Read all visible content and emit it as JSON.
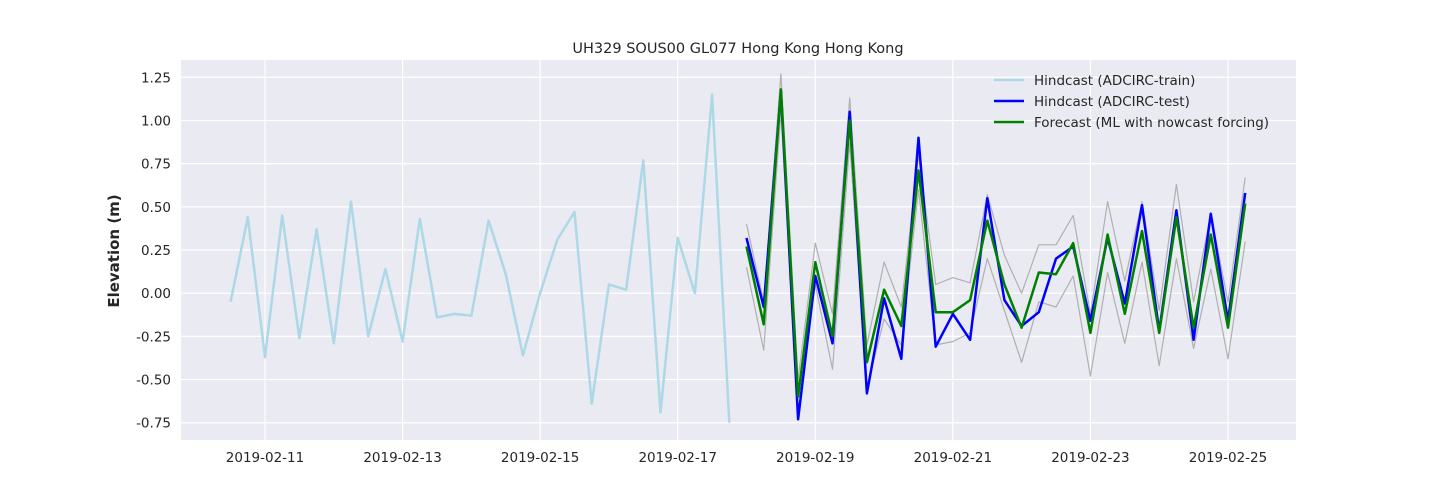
{
  "chart_data": {
    "type": "line",
    "title": "UH329 SOUS00 GL077 Hong Kong Hong Kong",
    "xlabel": "",
    "ylabel": "Elevation (m)",
    "x_axis": {
      "type": "date",
      "range": [
        "2019-02-10",
        "2019-02-26"
      ],
      "ticks": [
        "2019-02-11",
        "2019-02-13",
        "2019-02-15",
        "2019-02-17",
        "2019-02-19",
        "2019-02-21",
        "2019-02-23",
        "2019-02-25"
      ]
    },
    "y_axis": {
      "range": [
        -0.85,
        1.35
      ],
      "ticks": [
        "-0.75",
        "-0.50",
        "-0.25",
        "0.00",
        "0.25",
        "0.50",
        "0.75",
        "1.00",
        "1.25"
      ]
    },
    "grid": true,
    "background": "#eaeaf2",
    "legend_position": "top-right",
    "series": [
      {
        "name": "Hindcast (ADCIRC-train)",
        "color": "#add8e6",
        "x": [
          "2019-02-10 12:00",
          "2019-02-10 18:00",
          "2019-02-11 00:00",
          "2019-02-11 06:00",
          "2019-02-11 12:00",
          "2019-02-11 18:00",
          "2019-02-12 00:00",
          "2019-02-12 06:00",
          "2019-02-12 12:00",
          "2019-02-12 18:00",
          "2019-02-13 00:00",
          "2019-02-13 06:00",
          "2019-02-13 12:00",
          "2019-02-13 18:00",
          "2019-02-14 00:00",
          "2019-02-14 06:00",
          "2019-02-14 12:00",
          "2019-02-14 18:00",
          "2019-02-15 00:00",
          "2019-02-15 06:00",
          "2019-02-15 12:00",
          "2019-02-15 18:00",
          "2019-02-16 00:00",
          "2019-02-16 06:00",
          "2019-02-16 12:00",
          "2019-02-16 18:00",
          "2019-02-17 00:00",
          "2019-02-17 06:00",
          "2019-02-17 12:00",
          "2019-02-17 18:00"
        ],
        "values": [
          -0.05,
          0.44,
          -0.37,
          0.45,
          -0.26,
          0.37,
          -0.29,
          0.53,
          -0.25,
          0.14,
          -0.28,
          0.43,
          -0.14,
          -0.12,
          -0.13,
          0.42,
          0.11,
          -0.36,
          0.0,
          0.31,
          0.47,
          -0.64,
          0.05,
          0.02,
          0.77,
          -0.69,
          0.32,
          0.0,
          1.15,
          -0.75
        ]
      },
      {
        "name": "Hindcast (ADCIRC-test)",
        "color": "#0000ff",
        "x": [
          "2019-02-18 00:00",
          "2019-02-18 06:00",
          "2019-02-18 12:00",
          "2019-02-18 18:00",
          "2019-02-19 00:00",
          "2019-02-19 06:00",
          "2019-02-19 12:00",
          "2019-02-19 18:00",
          "2019-02-20 00:00",
          "2019-02-20 06:00",
          "2019-02-20 12:00",
          "2019-02-20 18:00",
          "2019-02-21 00:00",
          "2019-02-21 06:00",
          "2019-02-21 12:00",
          "2019-02-21 18:00",
          "2019-02-22 00:00",
          "2019-02-22 06:00",
          "2019-02-22 12:00",
          "2019-02-22 18:00",
          "2019-02-23 00:00",
          "2019-02-23 06:00",
          "2019-02-23 12:00",
          "2019-02-23 18:00",
          "2019-02-24 00:00",
          "2019-02-24 06:00",
          "2019-02-24 12:00",
          "2019-02-24 18:00",
          "2019-02-25 00:00",
          "2019-02-25 06:00"
        ],
        "values": [
          0.32,
          -0.08,
          1.17,
          -0.73,
          0.1,
          -0.29,
          1.05,
          -0.58,
          -0.03,
          -0.38,
          0.9,
          -0.31,
          -0.12,
          -0.27,
          0.55,
          -0.04,
          -0.19,
          -0.11,
          0.2,
          0.27,
          -0.16,
          0.32,
          -0.06,
          0.51,
          -0.22,
          0.48,
          -0.27,
          0.46,
          -0.16,
          0.58
        ]
      },
      {
        "name": "Forecast (ML with nowcast forcing)",
        "color": "#008000",
        "x": [
          "2019-02-18 00:00",
          "2019-02-18 06:00",
          "2019-02-18 12:00",
          "2019-02-18 18:00",
          "2019-02-19 00:00",
          "2019-02-19 06:00",
          "2019-02-19 12:00",
          "2019-02-19 18:00",
          "2019-02-20 00:00",
          "2019-02-20 06:00",
          "2019-02-20 12:00",
          "2019-02-20 18:00",
          "2019-02-21 00:00",
          "2019-02-21 06:00",
          "2019-02-21 12:00",
          "2019-02-21 18:00",
          "2019-02-22 00:00",
          "2019-02-22 06:00",
          "2019-02-22 12:00",
          "2019-02-22 18:00",
          "2019-02-23 00:00",
          "2019-02-23 06:00",
          "2019-02-23 12:00",
          "2019-02-23 18:00",
          "2019-02-24 00:00",
          "2019-02-24 06:00",
          "2019-02-24 12:00",
          "2019-02-24 18:00",
          "2019-02-25 00:00",
          "2019-02-25 06:00"
        ],
        "values": [
          0.27,
          -0.18,
          1.18,
          -0.6,
          0.18,
          -0.25,
          1.0,
          -0.4,
          0.02,
          -0.19,
          0.71,
          -0.11,
          -0.11,
          -0.04,
          0.42,
          0.05,
          -0.2,
          0.12,
          0.11,
          0.29,
          -0.23,
          0.34,
          -0.12,
          0.36,
          -0.23,
          0.44,
          -0.2,
          0.34,
          -0.2,
          0.52
        ]
      },
      {
        "color": "#b0b0b0",
        "x": [
          "2019-02-18 00:00",
          "2019-02-18 06:00",
          "2019-02-18 12:00",
          "2019-02-18 18:00",
          "2019-02-19 00:00",
          "2019-02-19 06:00",
          "2019-02-19 12:00",
          "2019-02-19 18:00",
          "2019-02-20 00:00",
          "2019-02-20 06:00",
          "2019-02-20 12:00",
          "2019-02-20 18:00",
          "2019-02-21 00:00",
          "2019-02-21 06:00",
          "2019-02-21 12:00",
          "2019-02-21 18:00",
          "2019-02-22 00:00",
          "2019-02-22 06:00",
          "2019-02-22 12:00",
          "2019-02-22 18:00",
          "2019-02-23 00:00",
          "2019-02-23 06:00",
          "2019-02-23 12:00",
          "2019-02-23 18:00",
          "2019-02-24 00:00",
          "2019-02-24 06:00",
          "2019-02-24 12:00",
          "2019-02-24 18:00",
          "2019-02-25 00:00",
          "2019-02-25 06:00"
        ],
        "values": [
          0.4,
          -0.05,
          1.27,
          -0.5,
          0.29,
          -0.12,
          1.13,
          -0.3,
          0.18,
          -0.08,
          0.8,
          0.05,
          0.09,
          0.06,
          0.57,
          0.22,
          0.0,
          0.28,
          0.28,
          0.45,
          -0.12,
          0.53,
          0.07,
          0.53,
          -0.1,
          0.63,
          -0.05,
          0.46,
          -0.05,
          0.67
        ]
      },
      {
        "color": "#b0b0b0",
        "x": [
          "2019-02-18 00:00",
          "2019-02-18 06:00",
          "2019-02-18 12:00",
          "2019-02-18 18:00",
          "2019-02-19 00:00",
          "2019-02-19 06:00",
          "2019-02-19 12:00",
          "2019-02-19 18:00",
          "2019-02-20 00:00",
          "2019-02-20 06:00",
          "2019-02-20 12:00",
          "2019-02-20 18:00",
          "2019-02-21 00:00",
          "2019-02-21 06:00",
          "2019-02-21 12:00",
          "2019-02-21 18:00",
          "2019-02-22 00:00",
          "2019-02-22 06:00",
          "2019-02-22 12:00",
          "2019-02-22 18:00",
          "2019-02-23 00:00",
          "2019-02-23 06:00",
          "2019-02-23 12:00",
          "2019-02-23 18:00",
          "2019-02-24 00:00",
          "2019-02-24 06:00",
          "2019-02-24 12:00",
          "2019-02-24 18:00",
          "2019-02-25 00:00",
          "2019-02-25 06:00"
        ],
        "values": [
          0.15,
          -0.33,
          1.05,
          -0.7,
          0.05,
          -0.44,
          0.87,
          -0.55,
          -0.15,
          -0.3,
          0.6,
          -0.3,
          -0.28,
          -0.23,
          0.2,
          -0.1,
          -0.4,
          -0.05,
          -0.08,
          0.1,
          -0.48,
          0.12,
          -0.29,
          0.18,
          -0.42,
          0.2,
          -0.32,
          0.14,
          -0.38,
          0.3
        ]
      }
    ]
  }
}
